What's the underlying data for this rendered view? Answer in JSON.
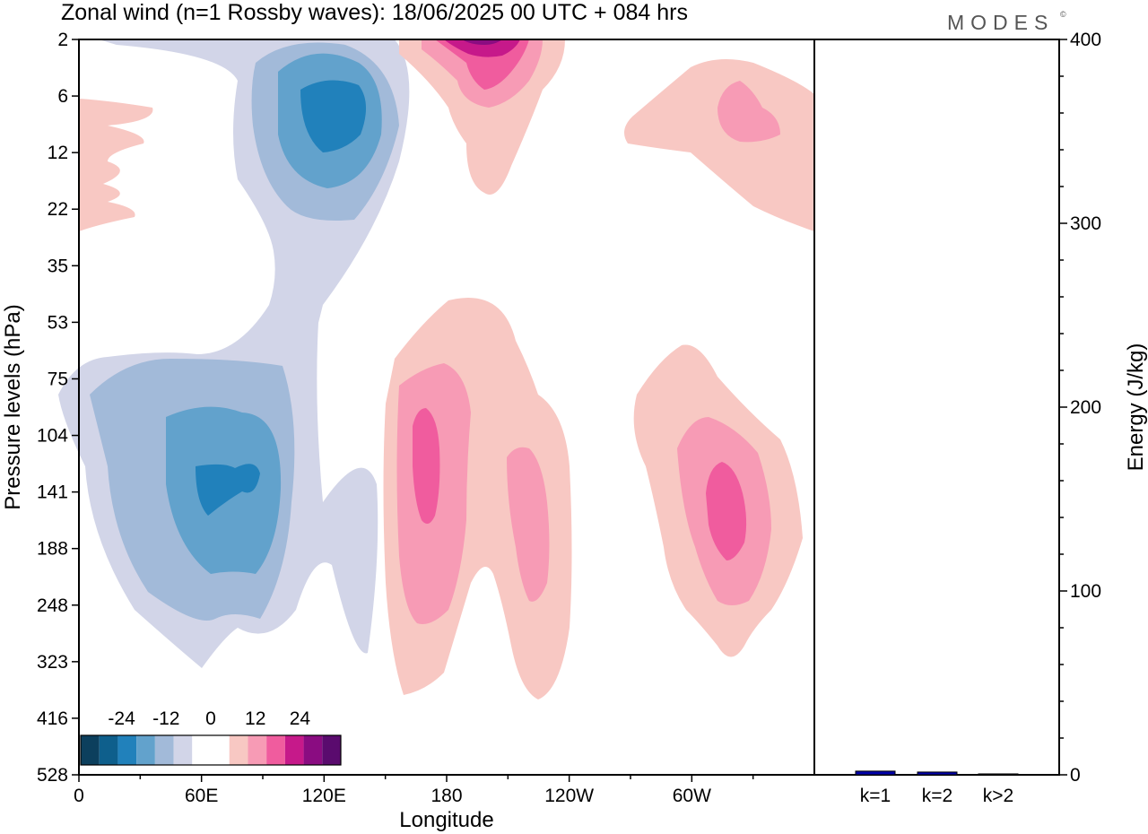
{
  "title": "Zonal wind (n=1 Rossby waves):  18/06/2025  00 UTC  + 084 hrs",
  "brand": "MODES",
  "brand_mark": "©",
  "chart_data": [
    {
      "type": "heatmap",
      "subtype": "filled-contour",
      "xlabel": "Longitude",
      "ylabel": "Pressure levels (hPa)",
      "x_ticks": [
        "0",
        "60E",
        "120E",
        "180",
        "120W",
        "60W"
      ],
      "x_tick_degrees": [
        0,
        60,
        120,
        180,
        240,
        300
      ],
      "xlim": [
        0,
        360
      ],
      "y_ticks": [
        "2",
        "6",
        "12",
        "22",
        "35",
        "53",
        "75",
        "104",
        "141",
        "188",
        "248",
        "323",
        "416",
        "528"
      ],
      "y_order": "2 at top, 528 at bottom",
      "colorbar": {
        "tick_labels": [
          "-24",
          "-12",
          "0",
          "12",
          "24"
        ],
        "tick_values": [
          -24,
          -12,
          0,
          12,
          24
        ],
        "colors": [
          "#0c3f5d",
          "#0e5f8c",
          "#2181bb",
          "#62a2cc",
          "#a2bad9",
          "#d2d5e8",
          "#ffffff",
          "#ffffff",
          "#f8c8c3",
          "#f79bb5",
          "#f05c9e",
          "#c6198a",
          "#8a0c81",
          "#5a0b6e"
        ]
      },
      "levels_shown": [
        "-18",
        "-12",
        "-6",
        "-3",
        "3",
        "6",
        "12",
        "18",
        "24"
      ],
      "features": [
        {
          "sign": "negative",
          "peak": -18,
          "lon": 90,
          "level_hPa": 8
        },
        {
          "sign": "negative",
          "peak": -18,
          "lon": 65,
          "level_hPa": 141
        },
        {
          "sign": "positive",
          "peak": 24,
          "lon": 190,
          "level_hPa": 2
        },
        {
          "sign": "positive",
          "peak": 12,
          "lon": 282,
          "level_hPa": 9
        },
        {
          "sign": "positive",
          "peak": 12,
          "lon": 170,
          "level_hPa": 118
        },
        {
          "sign": "positive",
          "peak": 6,
          "lon": 225,
          "level_hPa": 170
        },
        {
          "sign": "positive",
          "peak": 12,
          "lon": 287,
          "level_hPa": 150
        },
        {
          "sign": "positive",
          "peak": 3,
          "lon": 10,
          "level_hPa": 12
        }
      ]
    },
    {
      "type": "bar",
      "categories": [
        "k=1",
        "k=2",
        "k>2"
      ],
      "values": [
        2,
        1.5,
        0.5
      ],
      "ylabel": "Energy (J/kg)",
      "ylim": [
        0,
        400
      ],
      "y_ticks": [
        0,
        100,
        200,
        300,
        400
      ],
      "bar_color": "#0000aa"
    }
  ]
}
